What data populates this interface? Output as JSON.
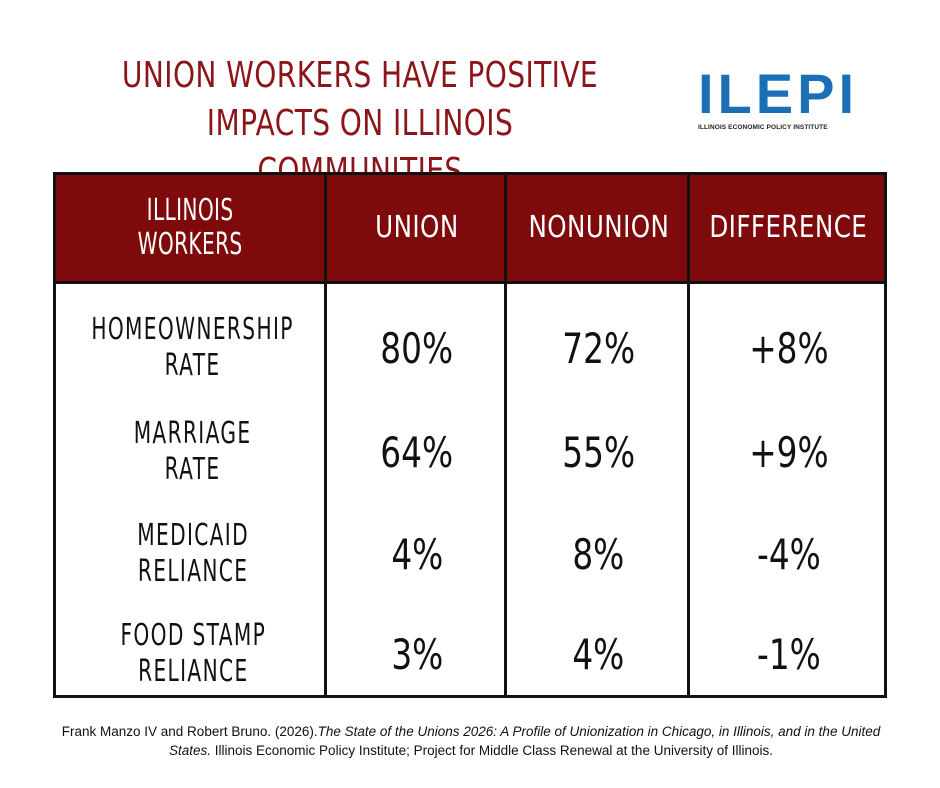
{
  "title": {
    "line1": "UNION WORKERS HAVE POSITIVE",
    "line2": "IMPACTS ON ILLINOIS COMMUNITIES"
  },
  "logo": {
    "name": "ILEPI",
    "subtitle": "ILLINOIS ECONOMIC POLICY INSTITUTE"
  },
  "colors": {
    "header": "#7e0a0c",
    "title": "#8b1519",
    "logo": "#1a6fb5"
  },
  "table": {
    "headers": [
      {
        "line1": "ILLINOIS",
        "line2": "WORKERS"
      },
      {
        "line1": "UNION",
        "line2": ""
      },
      {
        "line1": "NONUNION",
        "line2": ""
      },
      {
        "line1": "DIFFERENCE",
        "line2": ""
      }
    ],
    "rows": [
      {
        "label1": "HOMEOWNERSHIP",
        "label2": "RATE",
        "union": "80%",
        "nonunion": "72%",
        "difference": "+8%"
      },
      {
        "label1": "MARRIAGE",
        "label2": "RATE",
        "union": "64%",
        "nonunion": "55%",
        "difference": "+9%"
      },
      {
        "label1": "MEDICAID",
        "label2": "RELIANCE",
        "union": "4%",
        "nonunion": "8%",
        "difference": "-4%"
      },
      {
        "label1": "FOOD STAMP",
        "label2": "RELIANCE",
        "union": "3%",
        "nonunion": "4%",
        "difference": "-1%"
      }
    ]
  },
  "citation": {
    "authors": "Frank Manzo IV and Robert Bruno. (2026).",
    "book_title": "The State of the Unions 2026: A Profile of Unionization in Chicago, in Illinois, and in the United States.",
    "publisher": " Illinois Economic Policy Institute; Project for Middle Class Renewal at the University of Illinois."
  }
}
